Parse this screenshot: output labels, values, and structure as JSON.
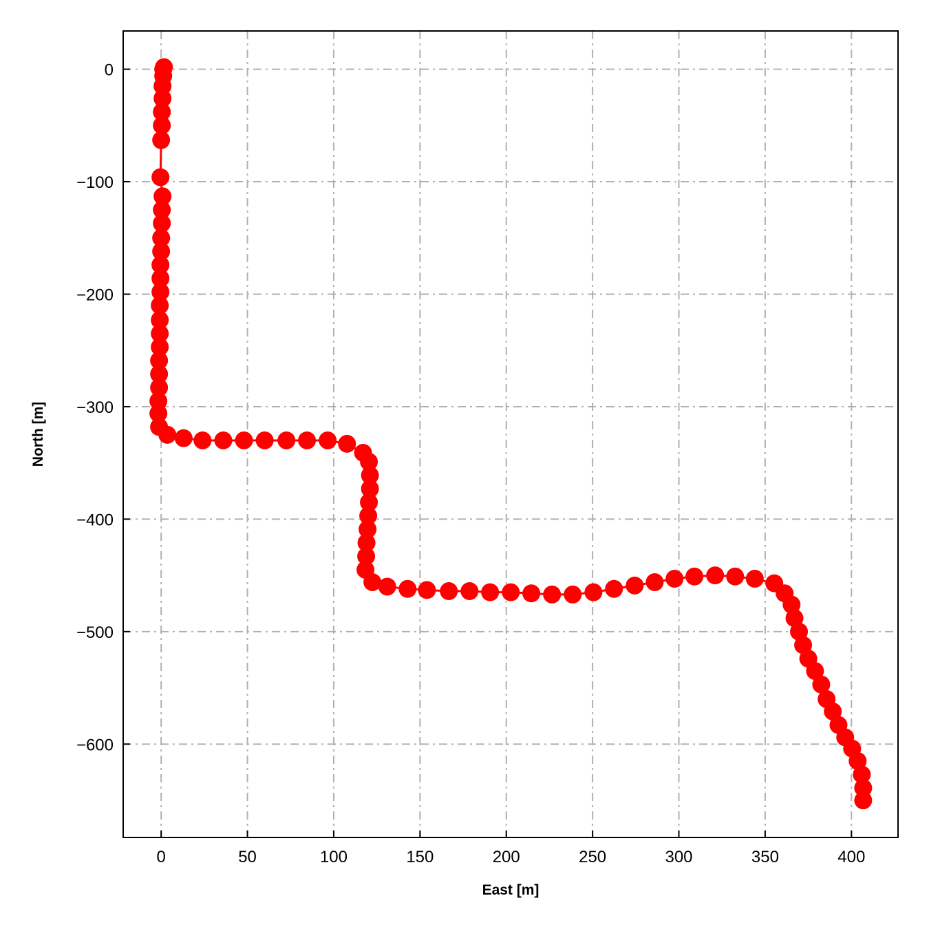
{
  "chart_data": {
    "type": "line",
    "title": "",
    "xlabel": "East [m]",
    "ylabel": "North [m]",
    "xlim": [
      -22,
      427
    ],
    "ylim": [
      -683,
      34
    ],
    "grid": true,
    "xticks": [
      0,
      50,
      100,
      150,
      200,
      250,
      300,
      350,
      400
    ],
    "yticks": [
      0,
      -100,
      -200,
      -300,
      -400,
      -500,
      -600
    ],
    "xtick_labels": [
      "0",
      "50",
      "100",
      "150",
      "200",
      "250",
      "300",
      "350",
      "400"
    ],
    "ytick_labels": [
      "0",
      "−100",
      "−200",
      "−300",
      "−400",
      "−500",
      "−600"
    ],
    "colors": {
      "series": "#ff0000",
      "grid": "#b0b0b0"
    },
    "series": [
      {
        "marker": "circle",
        "x": [
          1.6,
          1.2,
          1.2,
          0.8,
          0.8,
          0.4,
          0.4,
          0,
          -0.4,
          0.8,
          0.4,
          0.4,
          0,
          0,
          -0.4,
          -0.4,
          -0.4,
          -0.8,
          -0.8,
          -0.8,
          -0.8,
          -1.2,
          -1.2,
          -1.2,
          -1.6,
          -1.6,
          -1.2,
          3.6,
          13,
          24,
          36,
          48,
          60,
          72.6,
          84.5,
          96.5,
          107.7,
          117,
          120.4,
          121,
          121,
          120.4,
          120,
          119.6,
          119,
          118.8,
          118.4,
          122.4,
          131,
          142.8,
          154,
          166.7,
          178.7,
          190.6,
          202.6,
          214.5,
          226.5,
          238.5,
          250.5,
          262.4,
          274.4,
          286,
          297.5,
          309,
          321,
          332.6,
          344,
          355.3,
          361.3,
          365.3,
          367,
          369.6,
          372,
          375,
          378.9,
          382.5,
          385.6,
          389.2,
          392.5,
          396.4,
          400.4,
          403.6,
          406,
          406.8,
          406.8
        ],
        "y": [
          1.8,
          0,
          -6,
          -15,
          -26,
          -38,
          -50,
          -63,
          -96,
          -113,
          -125,
          -137,
          -150,
          -162,
          -174,
          -186,
          -198,
          -210,
          -223,
          -235,
          -247,
          -259,
          -271,
          -283,
          -295,
          -306,
          -318,
          -325,
          -328,
          -330,
          -330,
          -330,
          -330,
          -330,
          -330,
          -330,
          -333,
          -341,
          -349,
          -361,
          -373,
          -385,
          -397,
          -409,
          -421,
          -433,
          -445,
          -456,
          -460,
          -462,
          -463,
          -464,
          -464,
          -465,
          -465,
          -466,
          -467,
          -467,
          -465,
          -462,
          -459,
          -456,
          -453,
          -451,
          -450,
          -451,
          -453,
          -457,
          -466,
          -476,
          -488,
          -500,
          -512,
          -524,
          -535,
          -547,
          -560,
          -571,
          -583,
          -594,
          -604,
          -615,
          -627,
          -639,
          -650
        ]
      }
    ]
  }
}
